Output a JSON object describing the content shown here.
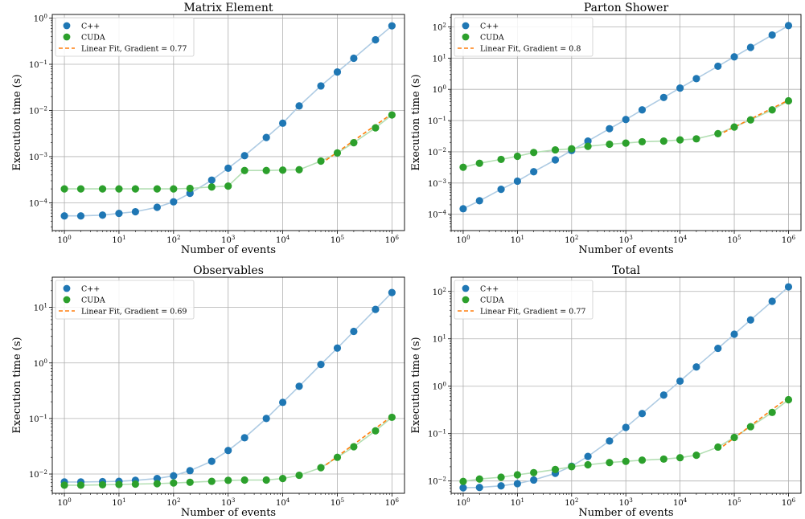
{
  "figure": {
    "xscale": "log",
    "yscale": "log",
    "grid": true,
    "colors": {
      "cpp": "#1f77b4",
      "cpp_line": "#aecbe3",
      "cuda": "#2ca02c",
      "cuda_line": "#b4dfb4",
      "fit": "#ff7f0e"
    }
  },
  "chart_data": [
    {
      "type": "scatter",
      "title": "Matrix Element",
      "xlabel": "Number of events",
      "ylabel": "Execution time (s)",
      "xlim": [
        0.6,
        1700000.0
      ],
      "ylim": [
        2.5e-05,
        1.2
      ],
      "xticks": [
        1,
        10,
        100,
        1000,
        10000,
        100000,
        1000000
      ],
      "xtick_exps": [
        "0",
        "1",
        "2",
        "3",
        "4",
        "5",
        "6"
      ],
      "yticks": [
        0.0001,
        0.001,
        0.01,
        0.1,
        1
      ],
      "ytick_exps": [
        "−4",
        "−3",
        "−2",
        "−1",
        "0"
      ],
      "legend_position": "top-left",
      "x": [
        1,
        2,
        5,
        10,
        20,
        50,
        100,
        200,
        500,
        1000,
        2000,
        5000,
        10000,
        20000,
        50000,
        100000,
        200000,
        500000,
        1000000
      ],
      "series": [
        {
          "name": "C++",
          "values": [
            5.2e-05,
            5.2e-05,
            5.4e-05,
            5.9e-05,
            6.4e-05,
            8e-05,
            0.000105,
            0.00016,
            0.00031,
            0.00056,
            0.00105,
            0.0026,
            0.0053,
            0.0125,
            0.034,
            0.068,
            0.135,
            0.34,
            0.68
          ]
        },
        {
          "name": "CUDA",
          "values": [
            0.0002,
            0.0002,
            0.0002,
            0.0002,
            0.0002,
            0.0002,
            0.0002,
            0.000205,
            0.00022,
            0.00023,
            0.0005,
            0.0005,
            0.00051,
            0.00052,
            0.0008,
            0.0012,
            0.002,
            0.0042,
            0.008
          ]
        }
      ],
      "fit": {
        "name": "Linear Fit, Gradient = 0.77",
        "x": [
          50000,
          1000000
        ],
        "y": [
          0.0007,
          0.0085
        ]
      }
    },
    {
      "type": "scatter",
      "title": "Parton Shower",
      "xlabel": "Number of events",
      "ylabel": "Execution time (s)",
      "xlim": [
        0.6,
        1700000.0
      ],
      "ylim": [
        3e-05,
        250
      ],
      "xticks": [
        1,
        10,
        100,
        1000,
        10000,
        100000,
        1000000
      ],
      "xtick_exps": [
        "0",
        "1",
        "2",
        "3",
        "4",
        "5",
        "6"
      ],
      "yticks": [
        0.0001,
        0.001,
        0.01,
        0.1,
        1,
        10,
        100
      ],
      "ytick_exps": [
        "−4",
        "−3",
        "−2",
        "−1",
        "0",
        "1",
        "2"
      ],
      "legend_position": "top-left",
      "x": [
        1,
        2,
        5,
        10,
        20,
        50,
        100,
        200,
        500,
        1000,
        2000,
        5000,
        10000,
        20000,
        50000,
        100000,
        200000,
        500000,
        1000000
      ],
      "series": [
        {
          "name": "C++",
          "values": [
            0.00015,
            0.00027,
            0.00063,
            0.00115,
            0.0023,
            0.0055,
            0.011,
            0.022,
            0.055,
            0.108,
            0.22,
            0.55,
            1.1,
            2.2,
            5.5,
            11,
            22,
            55,
            110
          ]
        },
        {
          "name": "CUDA",
          "values": [
            0.0032,
            0.0043,
            0.0057,
            0.0072,
            0.0095,
            0.0115,
            0.0125,
            0.015,
            0.0175,
            0.019,
            0.021,
            0.022,
            0.024,
            0.026,
            0.038,
            0.062,
            0.105,
            0.22,
            0.43
          ]
        }
      ],
      "fit": {
        "name": "Linear Fit, Gradient = 0.8",
        "x": [
          50000,
          1000000
        ],
        "y": [
          0.034,
          0.45
        ]
      }
    },
    {
      "type": "scatter",
      "title": "Observables",
      "xlabel": "Number of events",
      "ylabel": "Execution time (s)",
      "xlim": [
        0.6,
        1700000.0
      ],
      "ylim": [
        0.0045,
        35
      ],
      "xticks": [
        1,
        10,
        100,
        1000,
        10000,
        100000,
        1000000
      ],
      "xtick_exps": [
        "0",
        "1",
        "2",
        "3",
        "4",
        "5",
        "6"
      ],
      "yticks": [
        0.01,
        0.1,
        1,
        10
      ],
      "ytick_exps": [
        "−2",
        "−1",
        "0",
        "1"
      ],
      "legend_position": "top-left",
      "x": [
        1,
        2,
        5,
        10,
        20,
        50,
        100,
        200,
        500,
        1000,
        2000,
        5000,
        10000,
        20000,
        50000,
        100000,
        200000,
        500000,
        1000000
      ],
      "series": [
        {
          "name": "C++",
          "values": [
            0.0072,
            0.0072,
            0.0073,
            0.0074,
            0.0077,
            0.0083,
            0.0093,
            0.0115,
            0.017,
            0.0265,
            0.045,
            0.1,
            0.195,
            0.38,
            0.94,
            1.85,
            3.7,
            9.2,
            18.5
          ]
        },
        {
          "name": "CUDA",
          "values": [
            0.0063,
            0.0063,
            0.0064,
            0.0065,
            0.0066,
            0.0067,
            0.0069,
            0.0071,
            0.0074,
            0.0077,
            0.0078,
            0.0078,
            0.0083,
            0.0095,
            0.013,
            0.02,
            0.031,
            0.06,
            0.105
          ]
        }
      ],
      "fit": {
        "name": "Linear Fit, Gradient = 0.69",
        "x": [
          50000,
          1000000
        ],
        "y": [
          0.0125,
          0.11
        ]
      }
    },
    {
      "type": "scatter",
      "title": "Total",
      "xlabel": "Number of events",
      "ylabel": "Execution time (s)",
      "xlim": [
        0.6,
        1700000.0
      ],
      "ylim": [
        0.0055,
        200
      ],
      "xticks": [
        1,
        10,
        100,
        1000,
        10000,
        100000,
        1000000
      ],
      "xtick_exps": [
        "0",
        "1",
        "2",
        "3",
        "4",
        "5",
        "6"
      ],
      "yticks": [
        0.01,
        0.1,
        1,
        10,
        100
      ],
      "ytick_exps": [
        "−2",
        "−1",
        "0",
        "1",
        "2"
      ],
      "legend_position": "top-left",
      "x": [
        1,
        2,
        5,
        10,
        20,
        50,
        100,
        200,
        500,
        1000,
        2000,
        5000,
        10000,
        20000,
        50000,
        100000,
        200000,
        500000,
        1000000
      ],
      "series": [
        {
          "name": "C++",
          "values": [
            0.0072,
            0.0073,
            0.0079,
            0.0088,
            0.0105,
            0.0145,
            0.0205,
            0.033,
            0.07,
            0.135,
            0.265,
            0.65,
            1.28,
            2.55,
            6.3,
            12.5,
            25,
            62,
            125
          ]
        },
        {
          "name": "CUDA",
          "values": [
            0.0098,
            0.011,
            0.012,
            0.0135,
            0.015,
            0.0175,
            0.02,
            0.022,
            0.0245,
            0.026,
            0.0275,
            0.029,
            0.031,
            0.035,
            0.052,
            0.083,
            0.14,
            0.28,
            0.52
          ]
        }
      ],
      "fit": {
        "name": "Linear Fit, Gradient = 0.77",
        "x": [
          50000,
          1000000
        ],
        "y": [
          0.045,
          0.58
        ]
      }
    }
  ]
}
